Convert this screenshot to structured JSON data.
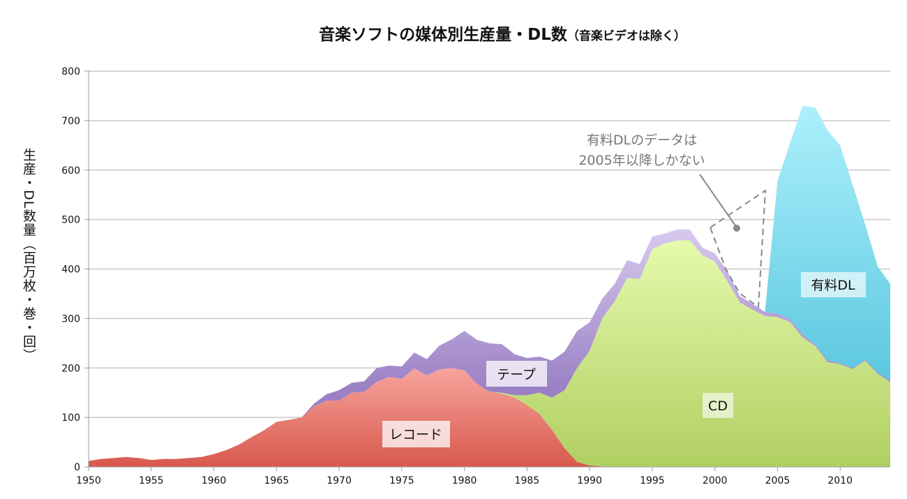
{
  "chart_data": {
    "type": "area",
    "stacked": true,
    "title": "音楽ソフトの媒体別生産量・DL数",
    "subtitle": "（音楽ビデオは除く）",
    "xlabel": "",
    "ylabel": "生産・DL数量（百万枚・巻・回）",
    "xlim": [
      1950,
      2014
    ],
    "ylim": [
      0,
      800
    ],
    "x_ticks": [
      1950,
      1955,
      1960,
      1965,
      1970,
      1975,
      1980,
      1985,
      1990,
      1995,
      2000,
      2005,
      2010
    ],
    "y_ticks": [
      0,
      100,
      200,
      300,
      400,
      500,
      600,
      700,
      800
    ],
    "grid": true,
    "x": [
      1950,
      1951,
      1952,
      1953,
      1954,
      1955,
      1956,
      1957,
      1958,
      1959,
      1960,
      1961,
      1962,
      1963,
      1964,
      1965,
      1966,
      1967,
      1968,
      1969,
      1970,
      1971,
      1972,
      1973,
      1974,
      1975,
      1976,
      1977,
      1978,
      1979,
      1980,
      1981,
      1982,
      1983,
      1984,
      1985,
      1986,
      1987,
      1988,
      1989,
      1990,
      1991,
      1992,
      1993,
      1994,
      1995,
      1996,
      1997,
      1998,
      1999,
      2000,
      2001,
      2002,
      2003,
      2004,
      2005,
      2006,
      2007,
      2008,
      2009,
      2010,
      2011,
      2012,
      2013,
      2014
    ],
    "series": [
      {
        "name": "レコード",
        "color": "#e06a60",
        "values": [
          12,
          16,
          18,
          20,
          18,
          14,
          16,
          16,
          18,
          20,
          26,
          34,
          45,
          60,
          74,
          91,
          95,
          100,
          122,
          134,
          134,
          150,
          152,
          172,
          182,
          178,
          199,
          185,
          197,
          200,
          195,
          168,
          152,
          148,
          140,
          125,
          107,
          75,
          38,
          10,
          3,
          1,
          0,
          0,
          0,
          0,
          0,
          0,
          0,
          0,
          0,
          0,
          0,
          0,
          0,
          0,
          0,
          0,
          0,
          0,
          0,
          0,
          0,
          0,
          0
        ]
      },
      {
        "name": "CD",
        "color": "#c4e07f",
        "values": [
          0,
          0,
          0,
          0,
          0,
          0,
          0,
          0,
          0,
          0,
          0,
          0,
          0,
          0,
          0,
          0,
          0,
          0,
          0,
          0,
          0,
          0,
          0,
          0,
          0,
          0,
          0,
          0,
          0,
          0,
          0,
          0,
          0,
          2,
          5,
          20,
          43,
          65,
          117,
          190,
          232,
          299,
          335,
          382,
          380,
          440,
          452,
          458,
          458,
          428,
          415,
          375,
          332,
          318,
          305,
          303,
          293,
          262,
          245,
          212,
          208,
          198,
          215,
          188,
          172
        ]
      },
      {
        "name": "テープ",
        "color": "#ac95d4",
        "values": [
          0,
          0,
          0,
          0,
          0,
          0,
          0,
          0,
          0,
          0,
          0,
          0,
          0,
          0,
          0,
          0,
          0,
          0,
          6,
          13,
          21,
          20,
          21,
          28,
          23,
          25,
          32,
          33,
          48,
          58,
          80,
          89,
          98,
          98,
          83,
          75,
          73,
          75,
          78,
          75,
          57,
          40,
          35,
          36,
          30,
          26,
          20,
          22,
          22,
          15,
          17,
          20,
          13,
          12,
          8,
          7,
          5,
          6,
          3,
          3,
          2,
          2,
          2,
          2,
          3
        ]
      },
      {
        "name": "有料DL",
        "color": "#7fdaf0",
        "values": [
          0,
          0,
          0,
          0,
          0,
          0,
          0,
          0,
          0,
          0,
          0,
          0,
          0,
          0,
          0,
          0,
          0,
          0,
          0,
          0,
          0,
          0,
          0,
          0,
          0,
          0,
          0,
          0,
          0,
          0,
          0,
          0,
          0,
          0,
          0,
          0,
          0,
          0,
          0,
          0,
          0,
          0,
          0,
          0,
          0,
          0,
          0,
          0,
          0,
          0,
          0,
          0,
          0,
          0,
          0,
          268,
          357,
          462,
          479,
          465,
          440,
          370,
          273,
          215,
          195
        ]
      }
    ],
    "annotation": {
      "line1": "有料DLのデータは",
      "line2": "2005年以降しかない"
    }
  }
}
